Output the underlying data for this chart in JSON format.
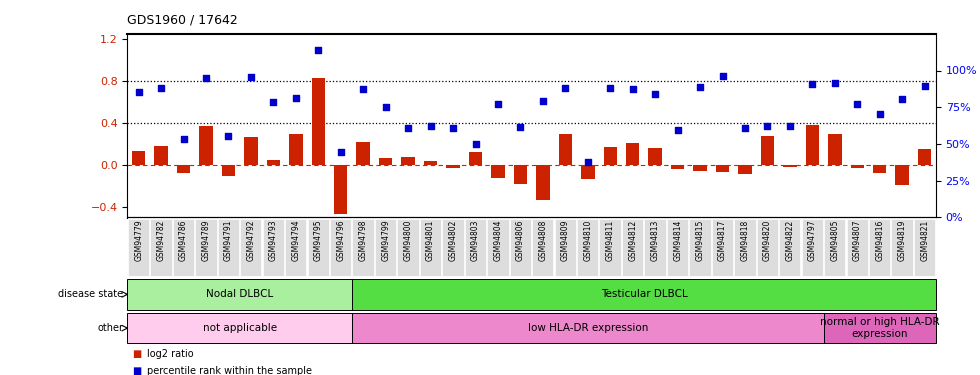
{
  "title": "GDS1960 / 17642",
  "samples": [
    "GSM94779",
    "GSM94782",
    "GSM94786",
    "GSM94789",
    "GSM94791",
    "GSM94792",
    "GSM94793",
    "GSM94794",
    "GSM94795",
    "GSM94796",
    "GSM94798",
    "GSM94799",
    "GSM94800",
    "GSM94801",
    "GSM94802",
    "GSM94803",
    "GSM94804",
    "GSM94806",
    "GSM94808",
    "GSM94809",
    "GSM94810",
    "GSM94811",
    "GSM94812",
    "GSM94813",
    "GSM94814",
    "GSM94815",
    "GSM94817",
    "GSM94818",
    "GSM94820",
    "GSM94822",
    "GSM94797",
    "GSM94805",
    "GSM94807",
    "GSM94816",
    "GSM94819",
    "GSM94821"
  ],
  "log2_ratio": [
    0.13,
    0.18,
    -0.08,
    0.37,
    -0.1,
    0.27,
    0.05,
    0.3,
    0.83,
    -0.47,
    0.22,
    0.07,
    0.08,
    0.04,
    -0.03,
    0.12,
    -0.12,
    -0.18,
    -0.33,
    0.3,
    -0.13,
    0.17,
    0.21,
    0.16,
    -0.04,
    -0.06,
    -0.07,
    -0.09,
    0.28,
    -0.02,
    0.38,
    0.3,
    -0.03,
    -0.08,
    -0.19,
    0.15
  ],
  "percentile_rank": [
    0.7,
    0.73,
    0.25,
    0.83,
    0.28,
    0.84,
    0.6,
    0.64,
    1.1,
    0.12,
    0.72,
    0.55,
    0.35,
    0.37,
    0.35,
    0.2,
    0.58,
    0.36,
    0.61,
    0.73,
    0.03,
    0.73,
    0.72,
    0.68,
    0.33,
    0.74,
    0.85,
    0.35,
    0.37,
    0.37,
    0.77,
    0.78,
    0.58,
    0.49,
    0.63,
    0.75
  ],
  "bar_color": "#cc2200",
  "scatter_color": "#0000cc",
  "bar_width": 0.6,
  "ylim_left": [
    -0.5,
    1.25
  ],
  "ylim_right": [
    0,
    125
  ],
  "yticks_left": [
    -0.4,
    0.0,
    0.4,
    0.8,
    1.2
  ],
  "yticks_right": [
    0,
    25,
    50,
    75,
    100
  ],
  "ytick_labels_right": [
    "0%",
    "25%",
    "50%",
    "75%",
    "100%"
  ],
  "hline_dotted": [
    0.4,
    0.8
  ],
  "hline_red_dashed": 0.0,
  "disease_state_groups": [
    {
      "label": "Nodal DLBCL",
      "start": 0,
      "end": 10,
      "color": "#aaeea0"
    },
    {
      "label": "Testicular DLBCL",
      "start": 10,
      "end": 36,
      "color": "#55dd44"
    }
  ],
  "other_groups": [
    {
      "label": "not applicable",
      "start": 0,
      "end": 10,
      "color": "#ffccee"
    },
    {
      "label": "low HLA-DR expression",
      "start": 10,
      "end": 31,
      "color": "#ee88cc"
    },
    {
      "label": "normal or high HLA-DR\nexpression",
      "start": 31,
      "end": 36,
      "color": "#dd66bb"
    }
  ],
  "legend_items": [
    {
      "label": "log2 ratio",
      "color": "#cc2200"
    },
    {
      "label": "percentile rank within the sample",
      "color": "#0000cc"
    }
  ],
  "row_label_disease": "disease state",
  "row_label_other": "other",
  "background_color": "#ffffff",
  "xticklabel_bg": "#dddddd"
}
